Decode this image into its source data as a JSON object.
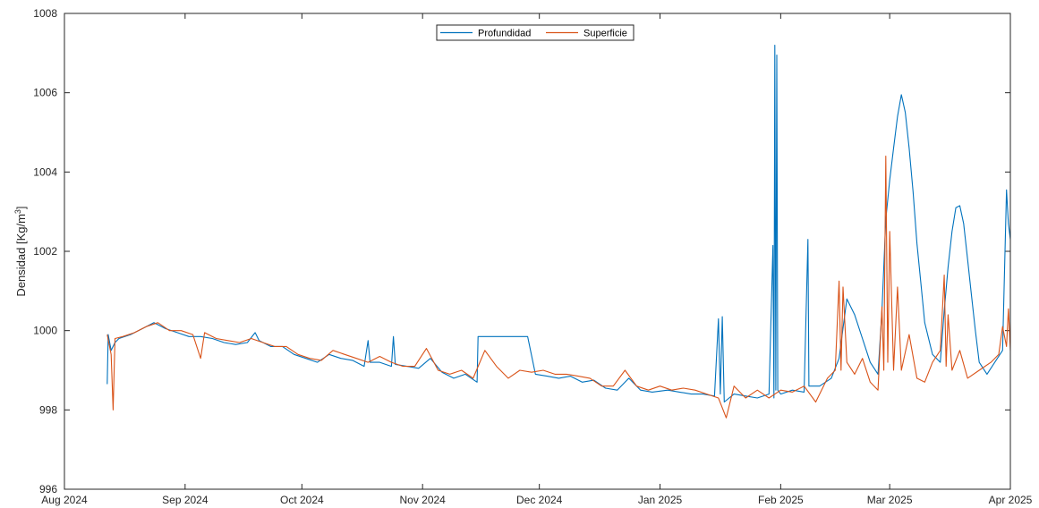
{
  "chart_data": {
    "type": "line",
    "title": "",
    "xlabel": "",
    "ylabel": "Densidad [Kg/m",
    "ylabel_sup": "3",
    "ylabel_end": "]",
    "xlim": [
      "2024-08-01",
      "2025-04-01"
    ],
    "ylim": [
      996,
      1008
    ],
    "grid": false,
    "legend_position": "top-center",
    "x_ticks": [
      {
        "date": "2024-08-01",
        "label": "Aug 2024"
      },
      {
        "date": "2024-09-01",
        "label": "Sep 2024"
      },
      {
        "date": "2024-10-01",
        "label": "Oct 2024"
      },
      {
        "date": "2024-11-01",
        "label": "Nov 2024"
      },
      {
        "date": "2024-12-01",
        "label": "Dec 2024"
      },
      {
        "date": "2025-01-01",
        "label": "Jan 2025"
      },
      {
        "date": "2025-02-01",
        "label": "Feb 2025"
      },
      {
        "date": "2025-03-01",
        "label": "Mar 2025"
      },
      {
        "date": "2025-04-01",
        "label": "Apr 2025"
      }
    ],
    "y_ticks": [
      996,
      998,
      1000,
      1002,
      1004,
      1006,
      1008
    ],
    "series": [
      {
        "name": "Profundidad",
        "color": "#0072BD",
        "points": [
          [
            "2024-08-12",
            998.65
          ],
          [
            "2024-08-12T06",
            999.9
          ],
          [
            "2024-08-13",
            999.5
          ],
          [
            "2024-08-14",
            999.7
          ],
          [
            "2024-08-15",
            999.8
          ],
          [
            "2024-08-18",
            999.9
          ],
          [
            "2024-08-21",
            1000.05
          ],
          [
            "2024-08-24",
            1000.2
          ],
          [
            "2024-08-27",
            1000.05
          ],
          [
            "2024-08-30",
            999.95
          ],
          [
            "2024-09-02",
            999.85
          ],
          [
            "2024-09-05",
            999.85
          ],
          [
            "2024-09-08",
            999.8
          ],
          [
            "2024-09-11",
            999.7
          ],
          [
            "2024-09-14",
            999.65
          ],
          [
            "2024-09-17",
            999.7
          ],
          [
            "2024-09-19",
            999.95
          ],
          [
            "2024-09-20",
            999.75
          ],
          [
            "2024-09-23",
            999.6
          ],
          [
            "2024-09-26",
            999.6
          ],
          [
            "2024-09-29",
            999.4
          ],
          [
            "2024-10-02",
            999.3
          ],
          [
            "2024-10-05",
            999.2
          ],
          [
            "2024-10-08",
            999.4
          ],
          [
            "2024-10-11",
            999.3
          ],
          [
            "2024-10-14",
            999.25
          ],
          [
            "2024-10-17",
            999.1
          ],
          [
            "2024-10-18",
            999.75
          ],
          [
            "2024-10-18T12",
            999.2
          ],
          [
            "2024-10-21",
            999.2
          ],
          [
            "2024-10-24",
            999.1
          ],
          [
            "2024-10-24T12",
            999.85
          ],
          [
            "2024-10-25",
            999.15
          ],
          [
            "2024-10-28",
            999.1
          ],
          [
            "2024-10-31",
            999.05
          ],
          [
            "2024-11-03",
            999.3
          ],
          [
            "2024-11-06",
            998.95
          ],
          [
            "2024-11-09",
            998.8
          ],
          [
            "2024-11-12",
            998.9
          ],
          [
            "2024-11-15",
            998.7
          ],
          [
            "2024-11-15T06",
            999.85
          ],
          [
            "2024-11-28",
            999.85
          ],
          [
            "2024-11-30",
            998.9
          ],
          [
            "2024-12-03",
            998.85
          ],
          [
            "2024-12-06",
            998.8
          ],
          [
            "2024-12-09",
            998.85
          ],
          [
            "2024-12-12",
            998.7
          ],
          [
            "2024-12-15",
            998.75
          ],
          [
            "2024-12-18",
            998.55
          ],
          [
            "2024-12-21",
            998.5
          ],
          [
            "2024-12-24",
            998.8
          ],
          [
            "2024-12-27",
            998.5
          ],
          [
            "2024-12-30",
            998.45
          ],
          [
            "2025-01-03",
            998.5
          ],
          [
            "2025-01-06",
            998.45
          ],
          [
            "2025-01-09",
            998.4
          ],
          [
            "2025-01-12",
            998.4
          ],
          [
            "2025-01-15",
            998.35
          ],
          [
            "2025-01-16",
            1000.3
          ],
          [
            "2025-01-16T12",
            998.4
          ],
          [
            "2025-01-17",
            1000.35
          ],
          [
            "2025-01-17T12",
            998.2
          ],
          [
            "2025-01-20",
            998.4
          ],
          [
            "2025-01-23",
            998.35
          ],
          [
            "2025-01-26",
            998.3
          ],
          [
            "2025-01-29",
            998.4
          ],
          [
            "2025-01-30",
            1002.15
          ],
          [
            "2025-01-30T06",
            998.3
          ],
          [
            "2025-01-30T12",
            1007.2
          ],
          [
            "2025-01-30T18",
            998.5
          ],
          [
            "2025-01-31",
            1006.95
          ],
          [
            "2025-01-31T06",
            998.5
          ],
          [
            "2025-02-01",
            998.4
          ],
          [
            "2025-02-04",
            998.5
          ],
          [
            "2025-02-07",
            998.45
          ],
          [
            "2025-02-08",
            1002.3
          ],
          [
            "2025-02-08T06",
            998.6
          ],
          [
            "2025-02-11",
            998.6
          ],
          [
            "2025-02-14",
            998.8
          ],
          [
            "2025-02-16",
            999.3
          ],
          [
            "2025-02-18",
            1000.8
          ],
          [
            "2025-02-20",
            1000.4
          ],
          [
            "2025-02-22",
            999.8
          ],
          [
            "2025-02-24",
            999.2
          ],
          [
            "2025-02-26",
            998.9
          ],
          [
            "2025-02-27",
            1000.5
          ],
          [
            "2025-02-28",
            1002.8
          ],
          [
            "2025-03-01",
            1003.8
          ],
          [
            "2025-03-02",
            1004.6
          ],
          [
            "2025-03-03",
            1005.4
          ],
          [
            "2025-03-04",
            1005.95
          ],
          [
            "2025-03-05",
            1005.5
          ],
          [
            "2025-03-06",
            1004.6
          ],
          [
            "2025-03-07",
            1003.5
          ],
          [
            "2025-03-08",
            1002.2
          ],
          [
            "2025-03-09",
            1001.2
          ],
          [
            "2025-03-10",
            1000.2
          ],
          [
            "2025-03-12",
            999.4
          ],
          [
            "2025-03-14",
            999.2
          ],
          [
            "2025-03-15",
            1000.5
          ],
          [
            "2025-03-16",
            1001.6
          ],
          [
            "2025-03-17",
            1002.5
          ],
          [
            "2025-03-18",
            1003.1
          ],
          [
            "2025-03-19",
            1003.15
          ],
          [
            "2025-03-20",
            1002.7
          ],
          [
            "2025-03-21",
            1001.8
          ],
          [
            "2025-03-22",
            1000.9
          ],
          [
            "2025-03-23",
            1000.0
          ],
          [
            "2025-03-24",
            999.2
          ],
          [
            "2025-03-26",
            998.9
          ],
          [
            "2025-03-28",
            999.2
          ],
          [
            "2025-03-30",
            999.5
          ],
          [
            "2025-03-31",
            1003.55
          ],
          [
            "2025-03-31T12",
            1002.7
          ],
          [
            "2025-04-01",
            1002.3
          ]
        ]
      },
      {
        "name": "Superficie",
        "color": "#D95319",
        "points": [
          [
            "2024-08-12",
            999.9
          ],
          [
            "2024-08-13",
            999.4
          ],
          [
            "2024-08-13T12",
            998.0
          ],
          [
            "2024-08-14",
            999.8
          ],
          [
            "2024-08-16",
            999.85
          ],
          [
            "2024-08-19",
            999.95
          ],
          [
            "2024-08-22",
            1000.1
          ],
          [
            "2024-08-25",
            1000.2
          ],
          [
            "2024-08-28",
            1000.0
          ],
          [
            "2024-08-31",
            1000.0
          ],
          [
            "2024-09-03",
            999.9
          ],
          [
            "2024-09-05",
            999.3
          ],
          [
            "2024-09-06",
            999.95
          ],
          [
            "2024-09-09",
            999.8
          ],
          [
            "2024-09-12",
            999.75
          ],
          [
            "2024-09-15",
            999.7
          ],
          [
            "2024-09-18",
            999.8
          ],
          [
            "2024-09-21",
            999.7
          ],
          [
            "2024-09-24",
            999.6
          ],
          [
            "2024-09-27",
            999.6
          ],
          [
            "2024-09-30",
            999.4
          ],
          [
            "2024-10-03",
            999.3
          ],
          [
            "2024-10-06",
            999.25
          ],
          [
            "2024-10-09",
            999.5
          ],
          [
            "2024-10-12",
            999.4
          ],
          [
            "2024-10-15",
            999.3
          ],
          [
            "2024-10-18",
            999.2
          ],
          [
            "2024-10-21",
            999.35
          ],
          [
            "2024-10-24",
            999.2
          ],
          [
            "2024-10-27",
            999.1
          ],
          [
            "2024-10-30",
            999.1
          ],
          [
            "2024-11-02",
            999.55
          ],
          [
            "2024-11-05",
            999.0
          ],
          [
            "2024-11-08",
            998.9
          ],
          [
            "2024-11-11",
            999.0
          ],
          [
            "2024-11-14",
            998.8
          ],
          [
            "2024-11-17",
            999.5
          ],
          [
            "2024-11-20",
            999.1
          ],
          [
            "2024-11-23",
            998.8
          ],
          [
            "2024-11-26",
            999.0
          ],
          [
            "2024-11-29",
            998.95
          ],
          [
            "2024-12-02",
            999.0
          ],
          [
            "2024-12-05",
            998.9
          ],
          [
            "2024-12-08",
            998.9
          ],
          [
            "2024-12-11",
            998.85
          ],
          [
            "2024-12-14",
            998.8
          ],
          [
            "2024-12-17",
            998.6
          ],
          [
            "2024-12-20",
            998.6
          ],
          [
            "2024-12-23",
            999.0
          ],
          [
            "2024-12-26",
            998.6
          ],
          [
            "2024-12-29",
            998.5
          ],
          [
            "2025-01-01",
            998.6
          ],
          [
            "2025-01-04",
            998.5
          ],
          [
            "2025-01-07",
            998.55
          ],
          [
            "2025-01-10",
            998.5
          ],
          [
            "2025-01-13",
            998.4
          ],
          [
            "2025-01-16",
            998.3
          ],
          [
            "2025-01-18",
            997.8
          ],
          [
            "2025-01-20",
            998.6
          ],
          [
            "2025-01-23",
            998.3
          ],
          [
            "2025-01-26",
            998.5
          ],
          [
            "2025-01-29",
            998.3
          ],
          [
            "2025-02-01",
            998.5
          ],
          [
            "2025-02-04",
            998.45
          ],
          [
            "2025-02-07",
            998.6
          ],
          [
            "2025-02-10",
            998.2
          ],
          [
            "2025-02-13",
            998.8
          ],
          [
            "2025-02-15",
            999.0
          ],
          [
            "2025-02-16",
            1001.25
          ],
          [
            "2025-02-16T12",
            999.0
          ],
          [
            "2025-02-17",
            1001.1
          ],
          [
            "2025-02-18",
            999.2
          ],
          [
            "2025-02-20",
            998.9
          ],
          [
            "2025-02-22",
            999.3
          ],
          [
            "2025-02-24",
            998.7
          ],
          [
            "2025-02-26",
            998.5
          ],
          [
            "2025-02-27",
            1000.6
          ],
          [
            "2025-02-27T12",
            999.0
          ],
          [
            "2025-02-28",
            1004.4
          ],
          [
            "2025-02-28T12",
            999.2
          ],
          [
            "2025-03-01",
            1002.5
          ],
          [
            "2025-03-02",
            999.0
          ],
          [
            "2025-03-03",
            1001.1
          ],
          [
            "2025-03-04",
            999.0
          ],
          [
            "2025-03-06",
            999.9
          ],
          [
            "2025-03-08",
            998.8
          ],
          [
            "2025-03-10",
            998.7
          ],
          [
            "2025-03-12",
            999.2
          ],
          [
            "2025-03-14",
            999.5
          ],
          [
            "2025-03-15",
            1001.4
          ],
          [
            "2025-03-15T12",
            999.1
          ],
          [
            "2025-03-16",
            1000.4
          ],
          [
            "2025-03-17",
            999.0
          ],
          [
            "2025-03-19",
            999.5
          ],
          [
            "2025-03-21",
            998.8
          ],
          [
            "2025-03-24",
            999.0
          ],
          [
            "2025-03-27",
            999.2
          ],
          [
            "2025-03-29",
            999.4
          ],
          [
            "2025-03-30",
            1000.1
          ],
          [
            "2025-03-31",
            999.6
          ],
          [
            "2025-03-31T12",
            1000.55
          ],
          [
            "2025-04-01",
            999.5
          ]
        ]
      }
    ]
  }
}
